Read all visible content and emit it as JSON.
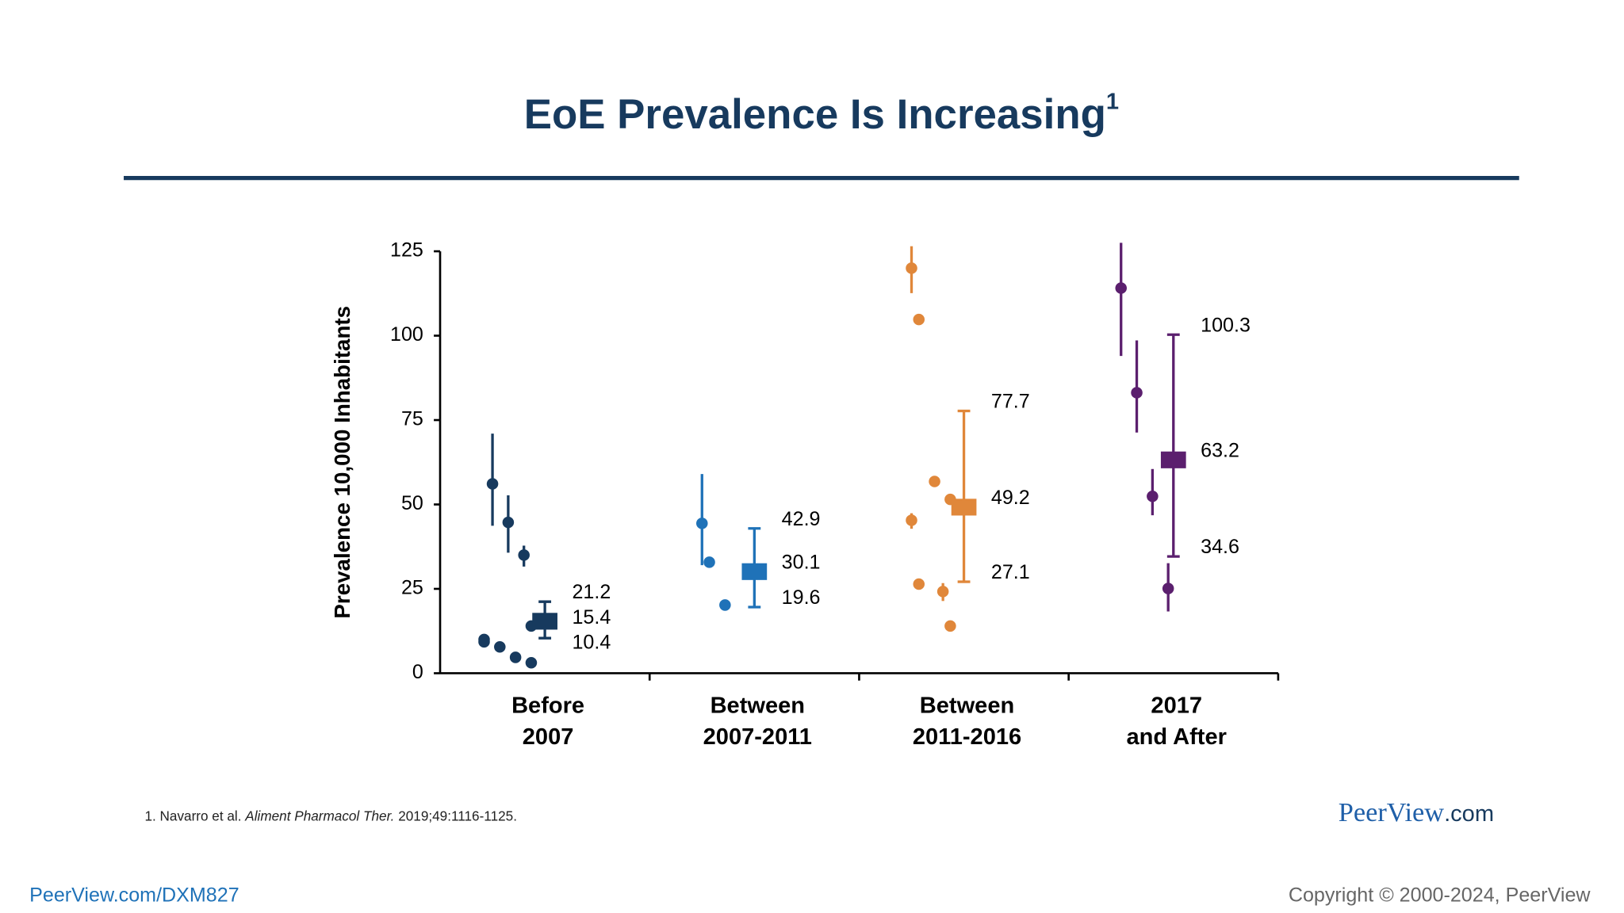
{
  "title": "EoE Prevalence Is Increasing",
  "title_ref": "1",
  "chart_data": {
    "type": "errorbar",
    "ylabel": "Prevalence 10,000 Inhabitants",
    "ylim": [
      0,
      125
    ],
    "yticks": [
      0,
      25,
      50,
      75,
      100,
      125
    ],
    "categories": [
      [
        "Before",
        "2007"
      ],
      [
        "Between",
        "2007-2011"
      ],
      [
        "Between",
        "2011-2016"
      ],
      [
        "2017",
        "and After"
      ]
    ],
    "groups": [
      {
        "color": "#173a5e",
        "studies": [
          {
            "value": 56.1,
            "ci": [
              43.7,
              71
            ]
          },
          {
            "value": 44.7,
            "ci": [
              35.7,
              52.7
            ]
          },
          {
            "value": 35,
            "ci": [
              31.6,
              37.8
            ]
          },
          {
            "value": 14
          },
          {
            "value": 10
          },
          {
            "value": 7.8
          },
          {
            "value": 4.7
          },
          {
            "value": 3.1
          },
          {
            "value": 9.3
          }
        ],
        "pooled": {
          "value": 15.4,
          "low": 10.4,
          "high": 21.2
        }
      },
      {
        "color": "#1f72b8",
        "studies": [
          {
            "value": 44.4,
            "ci": [
              32,
              59
            ]
          },
          {
            "value": 32.9
          },
          {
            "value": 20.2
          }
        ],
        "pooled": {
          "value": 30.1,
          "low": 19.6,
          "high": 42.9
        }
      },
      {
        "color": "#e0873a",
        "studies": [
          {
            "value": 120,
            "ci": [
              112.6,
              126.5
            ]
          },
          {
            "value": 104.8
          },
          {
            "value": 56.8
          },
          {
            "value": 51.5
          },
          {
            "value": 45.3,
            "ci": [
              42.8,
              47.4
            ]
          },
          {
            "value": 26.4
          },
          {
            "value": 24.2,
            "ci": [
              21.4,
              26.7
            ]
          },
          {
            "value": 14
          }
        ],
        "pooled": {
          "value": 49.2,
          "low": 27.1,
          "high": 77.7
        }
      },
      {
        "color": "#5b1f6e",
        "studies": [
          {
            "value": 114.1,
            "ci": [
              94,
              127.5
            ]
          },
          {
            "value": 83.1,
            "ci": [
              71.3,
              98.6
            ]
          },
          {
            "value": 52.4,
            "ci": [
              46.8,
              60.5
            ]
          },
          {
            "value": 25.1,
            "ci": [
              18.3,
              32.6
            ]
          }
        ],
        "pooled": {
          "value": 63.2,
          "low": 34.6,
          "high": 100.3
        }
      }
    ]
  },
  "footnote": [
    "1. Navarro et al. ",
    "Aliment Pharmacol Ther.",
    " 2019;49:1116-1125."
  ],
  "logo": [
    "PeerView",
    ".com"
  ],
  "footer_link": "PeerView.com/DXM827",
  "copyright": "Copyright © 2000-2024, PeerView"
}
